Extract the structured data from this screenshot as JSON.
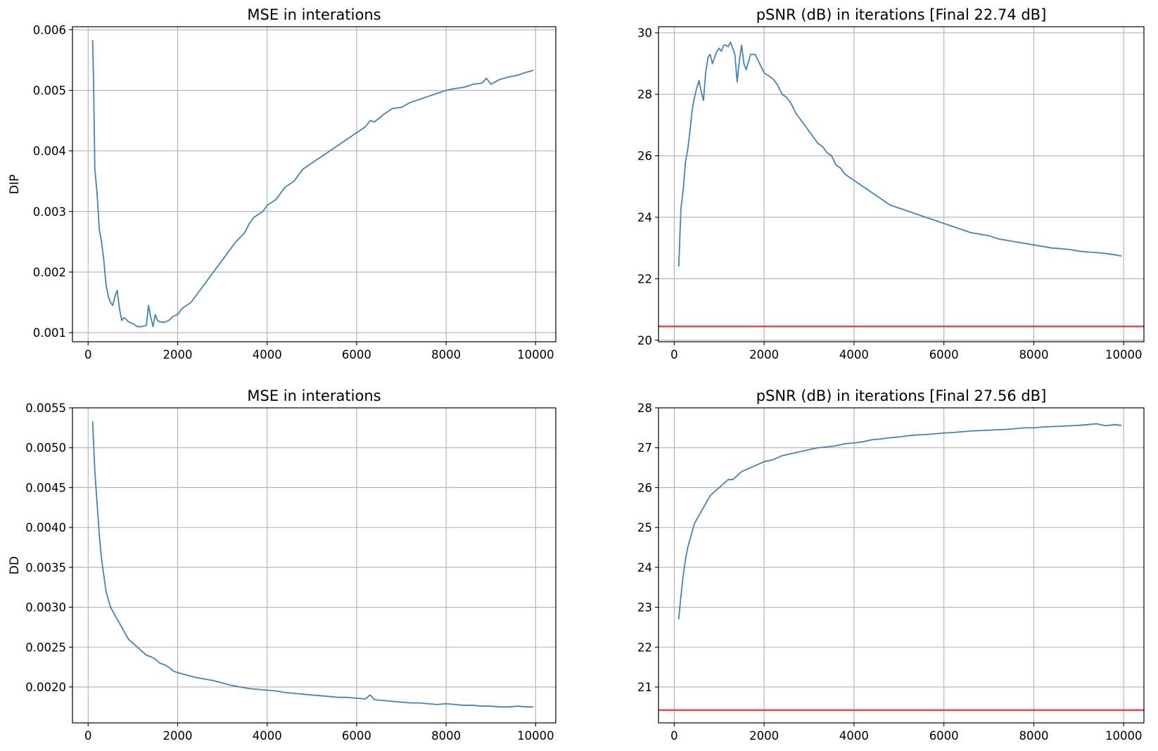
{
  "figure": {
    "colors": {
      "series": "#4682b4",
      "reference": "#d9534f",
      "grid": "#b0b0b0"
    }
  },
  "chart_data": [
    {
      "type": "line",
      "title": "MSE in interations",
      "ylabel": "DIP",
      "xlabel": "",
      "xlim": [
        -350,
        10450
      ],
      "ylim": [
        0.00085,
        0.00605
      ],
      "xticks": [
        0,
        2000,
        4000,
        6000,
        8000,
        10000
      ],
      "xtick_labels": [
        "0",
        "2000",
        "4000",
        "6000",
        "8000",
        "10000"
      ],
      "yticks": [
        0.001,
        0.002,
        0.003,
        0.004,
        0.005,
        0.006
      ],
      "ytick_labels": [
        "0.001",
        "0.002",
        "0.003",
        "0.004",
        "0.005",
        "0.006"
      ],
      "grid": true,
      "series": [
        {
          "x": [
            100,
            120,
            150,
            200,
            250,
            300,
            350,
            400,
            450,
            500,
            550,
            600,
            650,
            700,
            750,
            800,
            850,
            900,
            1000,
            1100,
            1200,
            1300,
            1350,
            1400,
            1450,
            1500,
            1550,
            1600,
            1700,
            1800,
            1900,
            2000,
            2100,
            2200,
            2300,
            2400,
            2500,
            2700,
            2900,
            3100,
            3300,
            3500,
            3600,
            3700,
            3800,
            3900,
            4000,
            4200,
            4400,
            4600,
            4800,
            5000,
            5200,
            5400,
            5600,
            5800,
            6000,
            6200,
            6300,
            6400,
            6600,
            6800,
            7000,
            7200,
            7400,
            7600,
            7800,
            8000,
            8200,
            8400,
            8600,
            8800,
            8900,
            9000,
            9200,
            9400,
            9600,
            9800,
            9950
          ],
          "y": [
            0.00583,
            0.0052,
            0.0037,
            0.0033,
            0.0027,
            0.0025,
            0.0022,
            0.0018,
            0.0016,
            0.0015,
            0.00145,
            0.0016,
            0.0017,
            0.0014,
            0.0012,
            0.00125,
            0.00122,
            0.00118,
            0.00115,
            0.0011,
            0.0011,
            0.00112,
            0.00145,
            0.00125,
            0.0011,
            0.0013,
            0.0012,
            0.00118,
            0.00117,
            0.0012,
            0.00127,
            0.0013,
            0.0014,
            0.00145,
            0.0015,
            0.0016,
            0.0017,
            0.0019,
            0.0021,
            0.0023,
            0.0025,
            0.00265,
            0.0028,
            0.0029,
            0.00295,
            0.003,
            0.0031,
            0.0032,
            0.0034,
            0.0035,
            0.0037,
            0.0038,
            0.0039,
            0.004,
            0.0041,
            0.0042,
            0.0043,
            0.0044,
            0.0045,
            0.00448,
            0.0046,
            0.0047,
            0.00472,
            0.0048,
            0.00485,
            0.0049,
            0.00495,
            0.005,
            0.00503,
            0.00505,
            0.0051,
            0.00512,
            0.0052,
            0.0051,
            0.00518,
            0.00522,
            0.00525,
            0.0053,
            0.00533
          ]
        }
      ]
    },
    {
      "type": "line",
      "title": "pSNR (dB) in iterations [Final 22.74 dB]",
      "ylabel": "",
      "xlabel": "",
      "xlim": [
        -350,
        10450
      ],
      "ylim": [
        19.95,
        30.2
      ],
      "xticks": [
        0,
        2000,
        4000,
        6000,
        8000,
        10000
      ],
      "xtick_labels": [
        "0",
        "2000",
        "4000",
        "6000",
        "8000",
        "10000"
      ],
      "yticks": [
        20,
        22,
        24,
        26,
        28,
        30
      ],
      "ytick_labels": [
        "20",
        "22",
        "24",
        "26",
        "28",
        "30"
      ],
      "grid": true,
      "reference_line": 20.45,
      "series": [
        {
          "x": [
            100,
            150,
            200,
            250,
            300,
            350,
            400,
            450,
            500,
            550,
            600,
            650,
            700,
            750,
            800,
            850,
            900,
            950,
            1000,
            1050,
            1100,
            1150,
            1200,
            1250,
            1300,
            1350,
            1400,
            1450,
            1500,
            1550,
            1600,
            1700,
            1800,
            1900,
            2000,
            2100,
            2200,
            2300,
            2400,
            2500,
            2600,
            2700,
            2800,
            2900,
            3000,
            3100,
            3200,
            3300,
            3400,
            3500,
            3600,
            3700,
            3800,
            3900,
            4000,
            4200,
            4400,
            4600,
            4800,
            5000,
            5200,
            5400,
            5600,
            5800,
            6000,
            6200,
            6400,
            6600,
            6800,
            7000,
            7200,
            7400,
            7600,
            7800,
            8000,
            8200,
            8400,
            8600,
            8800,
            9000,
            9200,
            9400,
            9600,
            9800,
            9950
          ],
          "y": [
            22.4,
            24.3,
            24.9,
            25.8,
            26.2,
            26.8,
            27.5,
            27.9,
            28.2,
            28.45,
            28.1,
            27.8,
            28.7,
            29.2,
            29.3,
            29.0,
            29.2,
            29.4,
            29.5,
            29.4,
            29.6,
            29.6,
            29.55,
            29.7,
            29.5,
            29.3,
            28.4,
            29.1,
            29.6,
            29.0,
            28.8,
            29.3,
            29.3,
            29.0,
            28.7,
            28.6,
            28.5,
            28.3,
            28.0,
            27.9,
            27.7,
            27.4,
            27.2,
            27.0,
            26.8,
            26.6,
            26.4,
            26.3,
            26.1,
            26.0,
            25.7,
            25.6,
            25.4,
            25.3,
            25.2,
            25.0,
            24.8,
            24.6,
            24.4,
            24.3,
            24.2,
            24.1,
            24.0,
            23.9,
            23.8,
            23.7,
            23.6,
            23.5,
            23.45,
            23.4,
            23.3,
            23.25,
            23.2,
            23.15,
            23.1,
            23.05,
            23.0,
            22.98,
            22.95,
            22.9,
            22.87,
            22.85,
            22.82,
            22.78,
            22.74
          ]
        }
      ]
    },
    {
      "type": "line",
      "title": "MSE in interations",
      "ylabel": "DD",
      "xlabel": "",
      "xlim": [
        -350,
        10450
      ],
      "ylim": [
        0.00155,
        0.0055
      ],
      "xticks": [
        0,
        2000,
        4000,
        6000,
        8000,
        10000
      ],
      "xtick_labels": [
        "0",
        "2000",
        "4000",
        "6000",
        "8000",
        "10000"
      ],
      "yticks": [
        0.002,
        0.0025,
        0.003,
        0.0035,
        0.004,
        0.0045,
        0.005,
        0.0055
      ],
      "ytick_labels": [
        "0.0020",
        "0.0025",
        "0.0030",
        "0.0035",
        "0.0040",
        "0.0045",
        "0.0050",
        "0.0055"
      ],
      "grid": true,
      "series": [
        {
          "x": [
            100,
            150,
            200,
            250,
            300,
            350,
            400,
            450,
            500,
            550,
            600,
            700,
            800,
            900,
            1000,
            1100,
            1200,
            1300,
            1400,
            1500,
            1600,
            1700,
            1800,
            1900,
            2000,
            2200,
            2400,
            2600,
            2800,
            3000,
            3200,
            3400,
            3600,
            3800,
            4000,
            4200,
            4400,
            4600,
            4800,
            5000,
            5200,
            5400,
            5600,
            5800,
            6000,
            6200,
            6300,
            6400,
            6600,
            6800,
            7000,
            7200,
            7400,
            7600,
            7800,
            8000,
            8200,
            8400,
            8600,
            8800,
            9000,
            9200,
            9400,
            9600,
            9800,
            9950
          ],
          "y": [
            0.00533,
            0.0047,
            0.0043,
            0.0039,
            0.0036,
            0.0034,
            0.0032,
            0.0031,
            0.003,
            0.00295,
            0.0029,
            0.0028,
            0.0027,
            0.0026,
            0.00255,
            0.0025,
            0.00245,
            0.0024,
            0.00238,
            0.00235,
            0.0023,
            0.00228,
            0.00225,
            0.0022,
            0.00218,
            0.00215,
            0.00212,
            0.0021,
            0.00208,
            0.00205,
            0.00202,
            0.002,
            0.00198,
            0.00197,
            0.00196,
            0.00195,
            0.00193,
            0.00192,
            0.00191,
            0.0019,
            0.00189,
            0.00188,
            0.00187,
            0.00187,
            0.00186,
            0.00185,
            0.0019,
            0.00184,
            0.00183,
            0.00182,
            0.00181,
            0.0018,
            0.0018,
            0.00179,
            0.00178,
            0.00179,
            0.00178,
            0.00177,
            0.00177,
            0.00176,
            0.00176,
            0.00175,
            0.00175,
            0.00176,
            0.00175,
            0.00175
          ]
        }
      ]
    },
    {
      "type": "line",
      "title": "pSNR (dB) in iterations [Final 27.56 dB]",
      "ylabel": "",
      "xlabel": "",
      "xlim": [
        -350,
        10450
      ],
      "ylim": [
        20.1,
        28.0
      ],
      "xticks": [
        0,
        2000,
        4000,
        6000,
        8000,
        10000
      ],
      "xtick_labels": [
        "0",
        "2000",
        "4000",
        "6000",
        "8000",
        "10000"
      ],
      "yticks": [
        21,
        22,
        23,
        24,
        25,
        26,
        27,
        28
      ],
      "ytick_labels": [
        "21",
        "22",
        "23",
        "24",
        "25",
        "26",
        "27",
        "28"
      ],
      "grid": true,
      "reference_line": 20.42,
      "series": [
        {
          "x": [
            100,
            150,
            200,
            250,
            300,
            350,
            400,
            450,
            500,
            550,
            600,
            700,
            800,
            900,
            1000,
            1100,
            1200,
            1300,
            1400,
            1500,
            1600,
            1700,
            1800,
            1900,
            2000,
            2200,
            2400,
            2600,
            2800,
            3000,
            3200,
            3400,
            3600,
            3800,
            4000,
            4200,
            4400,
            4600,
            4800,
            5000,
            5200,
            5400,
            5600,
            5800,
            6000,
            6200,
            6400,
            6600,
            6800,
            7000,
            7200,
            7400,
            7600,
            7800,
            8000,
            8200,
            8400,
            8600,
            8800,
            9000,
            9200,
            9400,
            9600,
            9800,
            9950
          ],
          "y": [
            22.7,
            23.3,
            23.8,
            24.2,
            24.5,
            24.7,
            24.9,
            25.1,
            25.2,
            25.3,
            25.4,
            25.6,
            25.8,
            25.9,
            26.0,
            26.1,
            26.2,
            26.2,
            26.3,
            26.4,
            26.45,
            26.5,
            26.55,
            26.6,
            26.65,
            26.7,
            26.8,
            26.85,
            26.9,
            26.95,
            27.0,
            27.02,
            27.05,
            27.1,
            27.12,
            27.15,
            27.2,
            27.22,
            27.25,
            27.27,
            27.3,
            27.32,
            27.33,
            27.35,
            27.37,
            27.38,
            27.4,
            27.42,
            27.43,
            27.44,
            27.45,
            27.46,
            27.48,
            27.5,
            27.5,
            27.52,
            27.53,
            27.54,
            27.55,
            27.56,
            27.58,
            27.6,
            27.55,
            27.58,
            27.56
          ]
        }
      ]
    }
  ]
}
